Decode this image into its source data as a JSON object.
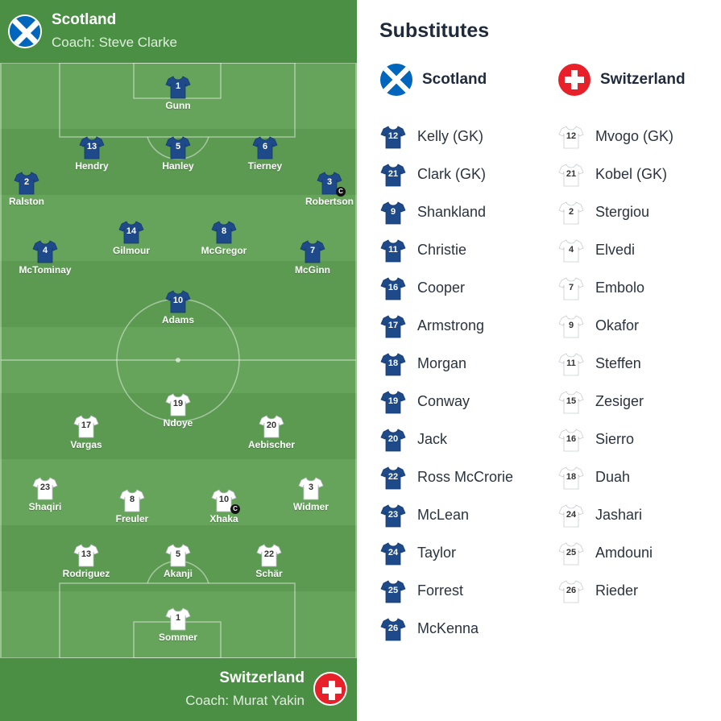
{
  "home": {
    "name": "Scotland",
    "coach": "Coach: Steve Clarke",
    "flag_icon": "scotland-flag-icon",
    "shirt_color": "#1e4a8a",
    "lineup": [
      {
        "number": "1",
        "name": "Gunn"
      },
      {
        "number": "13",
        "name": "Hendry"
      },
      {
        "number": "5",
        "name": "Hanley"
      },
      {
        "number": "6",
        "name": "Tierney"
      },
      {
        "number": "2",
        "name": "Ralston"
      },
      {
        "number": "3",
        "name": "Robertson",
        "captain": true
      },
      {
        "number": "14",
        "name": "Gilmour"
      },
      {
        "number": "8",
        "name": "McGregor"
      },
      {
        "number": "4",
        "name": "McTominay"
      },
      {
        "number": "7",
        "name": "McGinn"
      },
      {
        "number": "10",
        "name": "Adams"
      }
    ]
  },
  "away": {
    "name": "Switzerland",
    "coach": "Coach: Murat Yakin",
    "flag_icon": "switzerland-flag-icon",
    "shirt_color": "#ffffff",
    "lineup": [
      {
        "number": "19",
        "name": "Ndoye"
      },
      {
        "number": "17",
        "name": "Vargas"
      },
      {
        "number": "20",
        "name": "Aebischer"
      },
      {
        "number": "23",
        "name": "Shaqiri"
      },
      {
        "number": "8",
        "name": "Freuler"
      },
      {
        "number": "10",
        "name": "Xhaka",
        "captain": true
      },
      {
        "number": "3",
        "name": "Widmer"
      },
      {
        "number": "13",
        "name": "Rodriguez"
      },
      {
        "number": "5",
        "name": "Akanji"
      },
      {
        "number": "22",
        "name": "Schär"
      },
      {
        "number": "1",
        "name": "Sommer"
      }
    ]
  },
  "captain_badge": "C",
  "substitutes": {
    "title": "Substitutes",
    "home_label": "Scotland",
    "away_label": "Switzerland",
    "home": [
      {
        "number": "12",
        "name": "Kelly (GK)"
      },
      {
        "number": "21",
        "name": "Clark (GK)"
      },
      {
        "number": "9",
        "name": "Shankland"
      },
      {
        "number": "11",
        "name": "Christie"
      },
      {
        "number": "16",
        "name": "Cooper"
      },
      {
        "number": "17",
        "name": "Armstrong"
      },
      {
        "number": "18",
        "name": "Morgan"
      },
      {
        "number": "19",
        "name": "Conway"
      },
      {
        "number": "20",
        "name": "Jack"
      },
      {
        "number": "22",
        "name": "Ross McCrorie"
      },
      {
        "number": "23",
        "name": "McLean"
      },
      {
        "number": "24",
        "name": "Taylor"
      },
      {
        "number": "25",
        "name": "Forrest"
      },
      {
        "number": "26",
        "name": "McKenna"
      }
    ],
    "away": [
      {
        "number": "12",
        "name": "Mvogo (GK)"
      },
      {
        "number": "21",
        "name": "Kobel (GK)"
      },
      {
        "number": "2",
        "name": "Stergiou"
      },
      {
        "number": "4",
        "name": "Elvedi"
      },
      {
        "number": "7",
        "name": "Embolo"
      },
      {
        "number": "9",
        "name": "Okafor"
      },
      {
        "number": "11",
        "name": "Steffen"
      },
      {
        "number": "15",
        "name": "Zesiger"
      },
      {
        "number": "16",
        "name": "Sierro"
      },
      {
        "number": "18",
        "name": "Duah"
      },
      {
        "number": "24",
        "name": "Jashari"
      },
      {
        "number": "25",
        "name": "Amdouni"
      },
      {
        "number": "26",
        "name": "Rieder"
      }
    ]
  },
  "colors": {
    "pitch_light": "#6aa85f",
    "pitch_dark": "#5e9c54",
    "header_green": "#4a8f43",
    "scotland_blue": "#0065bd",
    "swiss_red": "#e8202a"
  }
}
